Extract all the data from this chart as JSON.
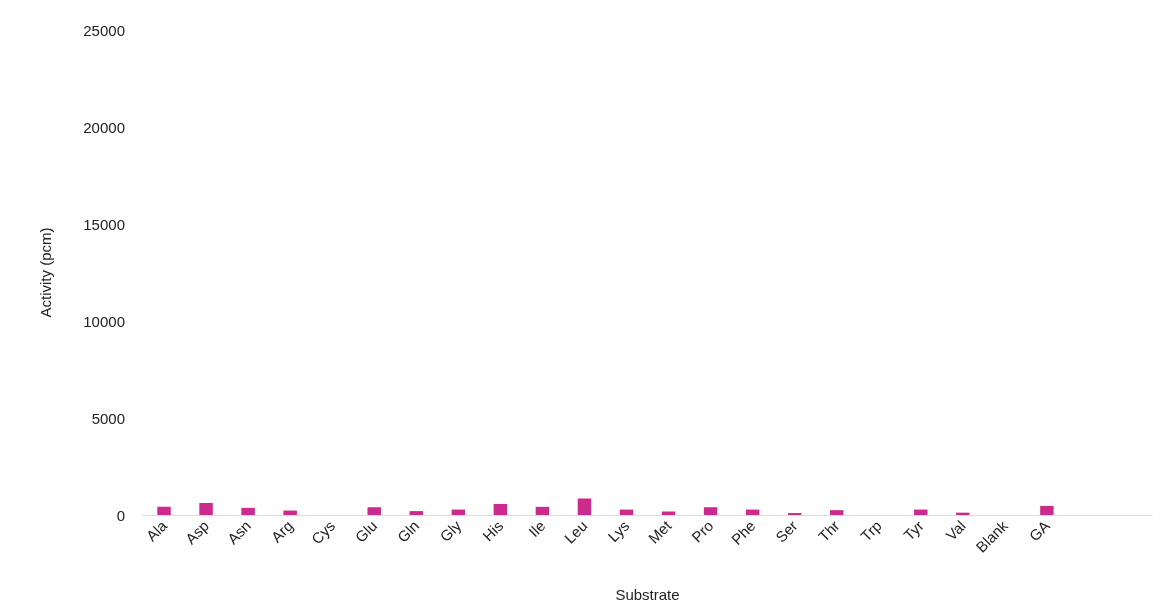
{
  "chart_data": {
    "type": "bar",
    "xlabel": "Substrate",
    "ylabel": "Activity (pcm)",
    "categories": [
      "Ala",
      "Asp",
      "Asn",
      "Arg",
      "Cys",
      "Glu",
      "Gln",
      "Gly",
      "His",
      "Ile",
      "Leu",
      "Lys",
      "Met",
      "Pro",
      "Phe",
      "Ser",
      "Thr",
      "Trp",
      "Tyr",
      "Val",
      "Blank",
      "GA",
      null,
      null
    ],
    "values": [
      430,
      620,
      370,
      230,
      0,
      400,
      200,
      280,
      570,
      420,
      850,
      280,
      180,
      400,
      280,
      100,
      250,
      0,
      280,
      120,
      0,
      470,
      null,
      null
    ],
    "color": "#cc2a8c",
    "ylim": [
      0,
      25000
    ],
    "yticks": [
      0,
      5000,
      10000,
      15000,
      20000,
      25000
    ],
    "grid": false
  }
}
